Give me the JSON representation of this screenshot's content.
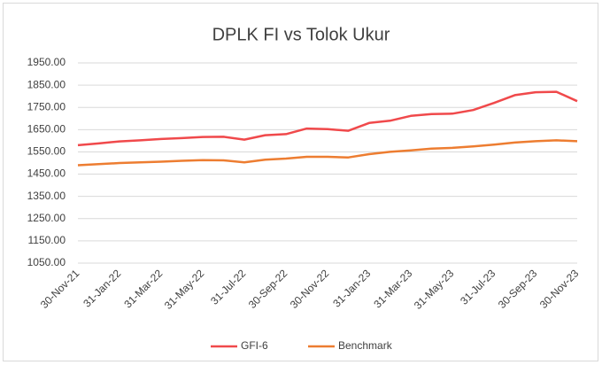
{
  "chart_data": {
    "type": "line",
    "title": "DPLK FI vs Tolok Ukur",
    "categories": [
      "30-Nov-21",
      null,
      "31-Jan-22",
      null,
      "31-Mar-22",
      null,
      "31-May-22",
      null,
      "31-Jul-22",
      null,
      "30-Sep-22",
      null,
      "30-Nov-22",
      null,
      "31-Jan-23",
      null,
      "31-Mar-23",
      null,
      "31-May-23",
      null,
      "31-Jul-23",
      null,
      "30-Sep-23",
      null,
      "30-Nov-23"
    ],
    "series": [
      {
        "name": "GFI-6",
        "color": "#f0494b",
        "values": [
          1580,
          1588,
          1597,
          1602,
          1608,
          1612,
          1617,
          1618,
          1605,
          1625,
          1630,
          1655,
          1652,
          1645,
          1680,
          1690,
          1712,
          1720,
          1722,
          1738,
          1770,
          1805,
          1818,
          1820,
          1778
        ]
      },
      {
        "name": "Benchmark",
        "color": "#ed7d31",
        "values": [
          1490,
          1495,
          1500,
          1503,
          1506,
          1510,
          1513,
          1512,
          1503,
          1515,
          1520,
          1528,
          1528,
          1525,
          1540,
          1550,
          1557,
          1565,
          1568,
          1575,
          1583,
          1592,
          1598,
          1602,
          1598
        ]
      }
    ],
    "ylim": [
      1050,
      1950
    ],
    "yticks": [
      {
        "value": 1050,
        "label": "1050.00"
      },
      {
        "value": 1150,
        "label": "1150.00"
      },
      {
        "value": 1250,
        "label": "1250.00"
      },
      {
        "value": 1350,
        "label": "1350.00"
      },
      {
        "value": 1450,
        "label": "1450.00"
      },
      {
        "value": 1550,
        "label": "1550.00"
      },
      {
        "value": 1650,
        "label": "1650.00"
      },
      {
        "value": 1750,
        "label": "1750.00"
      },
      {
        "value": 1850,
        "label": "1850.00"
      },
      {
        "value": 1950,
        "label": "1950.00"
      }
    ],
    "grid": true,
    "legend": "bottom"
  }
}
